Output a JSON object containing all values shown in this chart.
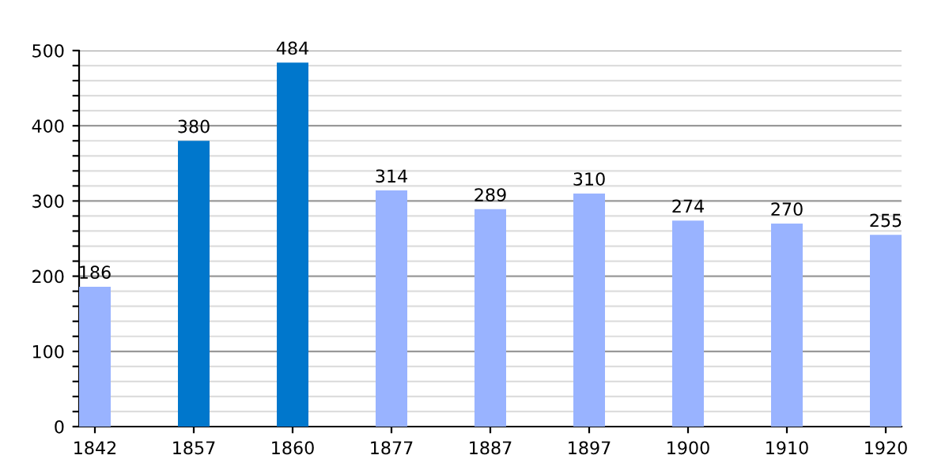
{
  "chart_data": {
    "type": "bar",
    "categories": [
      "1842",
      "1857",
      "1860",
      "1877",
      "1887",
      "1897",
      "1900",
      "1910",
      "1920"
    ],
    "values": [
      186,
      380,
      484,
      314,
      289,
      310,
      274,
      270,
      255
    ],
    "colors": [
      "#99b3ff",
      "#0077cc",
      "#0077cc",
      "#99b3ff",
      "#99b3ff",
      "#99b3ff",
      "#99b3ff",
      "#99b3ff",
      "#99b3ff"
    ],
    "ylim": [
      0,
      500
    ],
    "yticks": [
      0,
      {
        "value": 20,
        "label": null
      },
      {
        "value": 40,
        "label": null
      },
      {
        "value": 60,
        "label": null
      },
      {
        "value": 80,
        "label": null
      },
      100,
      {
        "value": 120,
        "label": null
      },
      {
        "value": 140,
        "label": null
      },
      {
        "value": 160,
        "label": null
      },
      {
        "value": 180,
        "label": null
      },
      200,
      {
        "value": 220,
        "label": null
      },
      {
        "value": 240,
        "label": null
      },
      {
        "value": 260,
        "label": null
      },
      {
        "value": 280,
        "label": null
      },
      300,
      {
        "value": 320,
        "label": null
      },
      {
        "value": 340,
        "label": null
      },
      {
        "value": 360,
        "label": null
      },
      {
        "value": 380,
        "label": null
      },
      400,
      {
        "value": 420,
        "label": null
      },
      {
        "value": 440,
        "label": null
      },
      {
        "value": 460,
        "label": null
      },
      {
        "value": 480,
        "label": null
      },
      500
    ],
    "grid": "y",
    "data_labels": true
  }
}
